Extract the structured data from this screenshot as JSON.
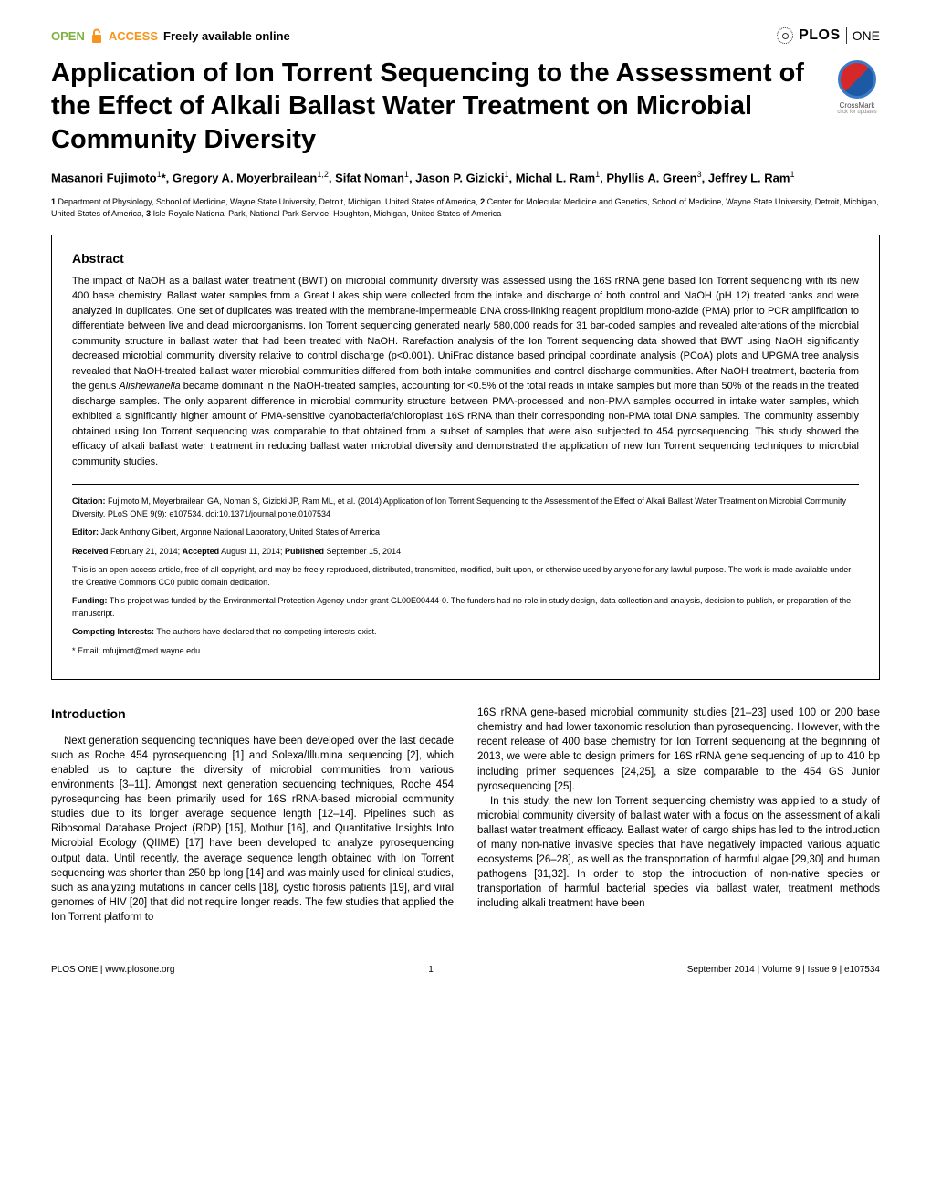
{
  "header": {
    "open_access_label": "OPEN",
    "access_label": "ACCESS",
    "freely_label": "Freely available online",
    "plos": "PLOS",
    "one": "ONE"
  },
  "crossmark": {
    "label": "CrossMark",
    "sublabel": "click for updates"
  },
  "title": "Application of Ion Torrent Sequencing to the Assessment of the Effect of Alkali Ballast Water Treatment on Microbial Community Diversity",
  "authors_html": "Masanori Fujimoto<sup>1</sup>*, Gregory A. Moyerbrailean<sup>1,2</sup>, Sifat Noman<sup>1</sup>, Jason P. Gizicki<sup>1</sup>, Michal L. Ram<sup>1</sup>, Phyllis A. Green<sup>3</sup>, Jeffrey L. Ram<sup>1</sup>",
  "affiliations": "1 Department of Physiology, School of Medicine, Wayne State University, Detroit, Michigan, United States of America, 2 Center for Molecular Medicine and Genetics, School of Medicine, Wayne State University, Detroit, Michigan, United States of America, 3 Isle Royale National Park, National Park Service, Houghton, Michigan, United States of America",
  "abstract": {
    "heading": "Abstract",
    "text": "The impact of NaOH as a ballast water treatment (BWT) on microbial community diversity was assessed using the 16S rRNA gene based Ion Torrent sequencing with its new 400 base chemistry. Ballast water samples from a Great Lakes ship were collected from the intake and discharge of both control and NaOH (pH 12) treated tanks and were analyzed in duplicates. One set of duplicates was treated with the membrane-impermeable DNA cross-linking reagent propidium mono-azide (PMA) prior to PCR amplification to differentiate between live and dead microorganisms. Ion Torrent sequencing generated nearly 580,000 reads for 31 bar-coded samples and revealed alterations of the microbial community structure in ballast water that had been treated with NaOH. Rarefaction analysis of the Ion Torrent sequencing data showed that BWT using NaOH significantly decreased microbial community diversity relative to control discharge (p<0.001). UniFrac distance based principal coordinate analysis (PCoA) plots and UPGMA tree analysis revealed that NaOH-treated ballast water microbial communities differed from both intake communities and control discharge communities. After NaOH treatment, bacteria from the genus Alishewanella became dominant in the NaOH-treated samples, accounting for <0.5% of the total reads in intake samples but more than 50% of the reads in the treated discharge samples. The only apparent difference in microbial community structure between PMA-processed and non-PMA samples occurred in intake water samples, which exhibited a significantly higher amount of PMA-sensitive cyanobacteria/chloroplast 16S rRNA than their corresponding non-PMA total DNA samples. The community assembly obtained using Ion Torrent sequencing was comparable to that obtained from a subset of samples that were also subjected to 454 pyrosequencing. This study showed the efficacy of alkali ballast water treatment in reducing ballast water microbial diversity and demonstrated the application of new Ion Torrent sequencing techniques to microbial community studies."
  },
  "meta": {
    "citation_label": "Citation:",
    "citation": " Fujimoto M, Moyerbrailean GA, Noman S, Gizicki JP, Ram ML, et al. (2014) Application of Ion Torrent Sequencing to the Assessment of the Effect of Alkali Ballast Water Treatment on Microbial Community Diversity. PLoS ONE 9(9): e107534. doi:10.1371/journal.pone.0107534",
    "editor_label": "Editor:",
    "editor": " Jack Anthony Gilbert, Argonne National Laboratory, United States of America",
    "received_label": "Received",
    "received": " February 21, 2014; ",
    "accepted_label": "Accepted",
    "accepted": " August 11, 2014; ",
    "published_label": "Published",
    "published": " September 15, 2014",
    "license": "This is an open-access article, free of all copyright, and may be freely reproduced, distributed, transmitted, modified, built upon, or otherwise used by anyone for any lawful purpose. The work is made available under the Creative Commons CC0 public domain dedication.",
    "funding_label": "Funding:",
    "funding": " This project was funded by the Environmental Protection Agency under grant GL00E00444-0. The funders had no role in study design, data collection and analysis, decision to publish, or preparation of the manuscript.",
    "competing_label": "Competing Interests:",
    "competing": " The authors have declared that no competing interests exist.",
    "email": "* Email: mfujimot@med.wayne.edu"
  },
  "body": {
    "intro_heading": "Introduction",
    "col1_p1": "Next generation sequencing techniques have been developed over the last decade such as Roche 454 pyrosequencing [1] and Solexa/Illumina sequencing [2], which enabled us to capture the diversity of microbial communities from various environments [3–11]. Amongst next generation sequencing techniques, Roche 454 pyrosequncing has been primarily used for 16S rRNA-based microbial community studies due to its longer average sequence length [12–14]. Pipelines such as Ribosomal Database Project (RDP) [15], Mothur [16], and Quantitative Insights Into Microbial Ecology (QIIME) [17] have been developed to analyze pyrosequencing output data. Until recently, the average sequence length obtained with Ion Torrent sequencing was shorter than 250 bp long [14] and was mainly used for clinical studies, such as analyzing mutations in cancer cells [18], cystic fibrosis patients [19], and viral genomes of HIV [20] that did not require longer reads. The few studies that applied the Ion Torrent platform to",
    "col2_p1": "16S rRNA gene-based microbial community studies [21–23] used 100 or 200 base chemistry and had lower taxonomic resolution than pyrosequencing. However, with the recent release of 400 base chemistry for Ion Torrent sequencing at the beginning of 2013, we were able to design primers for 16S rRNA gene sequencing of up to 410 bp including primer sequences [24,25], a size comparable to the 454 GS Junior pyrosequencing [25].",
    "col2_p2": "In this study, the new Ion Torrent sequencing chemistry was applied to a study of microbial community diversity of ballast water with a focus on the assessment of alkali ballast water treatment efficacy. Ballast water of cargo ships has led to the introduction of many non-native invasive species that have negatively impacted various aquatic ecosystems [26–28], as well as the transportation of harmful algae [29,30] and human pathogens [31,32]. In order to stop the introduction of non-native species or transportation of harmful bacterial species via ballast water, treatment methods including alkali treatment have been"
  },
  "footer": {
    "left": "PLOS ONE | www.plosone.org",
    "page": "1",
    "right": "September 2014 | Volume 9 | Issue 9 | e107534"
  },
  "colors": {
    "open_green": "#7eb241",
    "open_orange": "#f7941e"
  }
}
